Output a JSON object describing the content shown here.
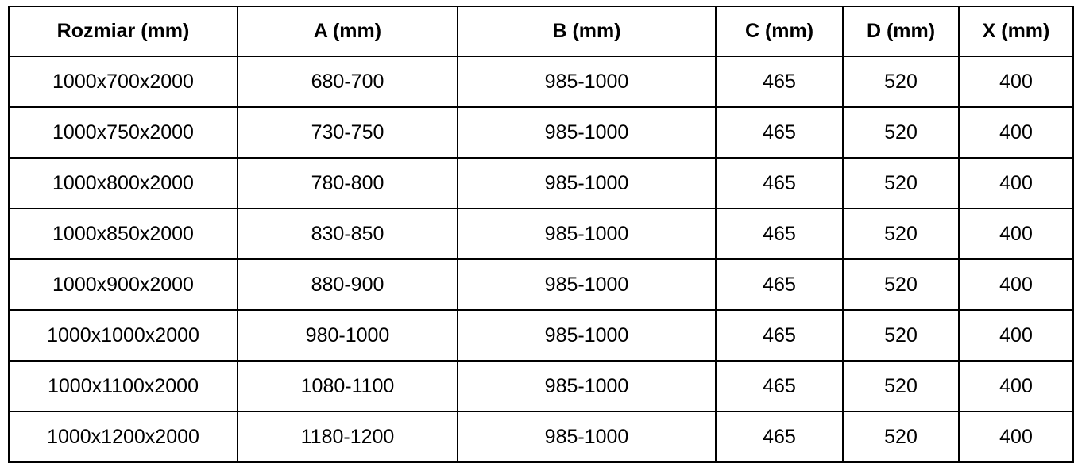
{
  "table": {
    "headers": [
      "Rozmiar (mm)",
      "A (mm)",
      "B (mm)",
      "C (mm)",
      "D (mm)",
      "X (mm)"
    ],
    "rows": [
      [
        "1000x700x2000",
        "680-700",
        "985-1000",
        "465",
        "520",
        "400"
      ],
      [
        "1000x750x2000",
        "730-750",
        "985-1000",
        "465",
        "520",
        "400"
      ],
      [
        "1000x800x2000",
        "780-800",
        "985-1000",
        "465",
        "520",
        "400"
      ],
      [
        "1000x850x2000",
        "830-850",
        "985-1000",
        "465",
        "520",
        "400"
      ],
      [
        "1000x900x2000",
        "880-900",
        "985-1000",
        "465",
        "520",
        "400"
      ],
      [
        "1000x1000x2000",
        "980-1000",
        "985-1000",
        "465",
        "520",
        "400"
      ],
      [
        "1000x1100x2000",
        "1080-1100",
        "985-1000",
        "465",
        "520",
        "400"
      ],
      [
        "1000x1200x2000",
        "1180-1200",
        "985-1000",
        "465",
        "520",
        "400"
      ]
    ]
  }
}
